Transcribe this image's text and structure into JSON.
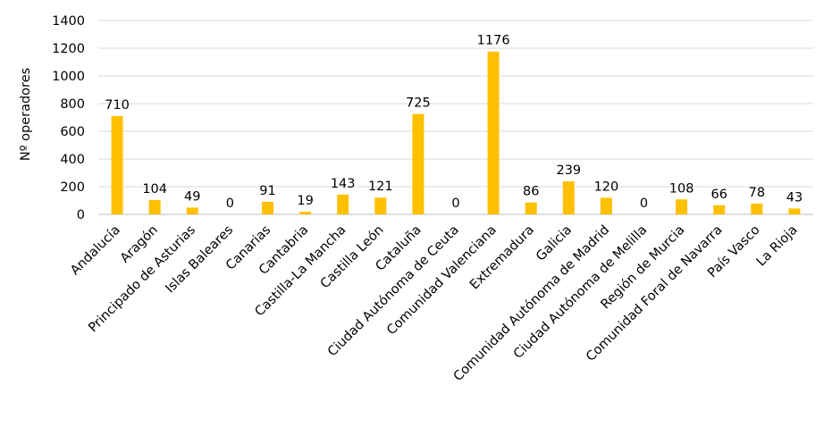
{
  "chart_data": {
    "type": "bar",
    "ylabel": "Nº operadores",
    "ylim": [
      0,
      1400
    ],
    "yticks": [
      0,
      200,
      400,
      600,
      800,
      1000,
      1200,
      1400
    ],
    "grid": true,
    "legend": "none",
    "bar_color": "#FFC000",
    "categories": [
      "Andalucía",
      "Aragón",
      "Principado de Asturias",
      "Islas Baleares",
      "Canarias",
      "Cantabria",
      "Castilla-La Mancha",
      "Castilla León",
      "Cataluña",
      "Ciudad Autónoma de Ceuta",
      "Comunidad Valenciana",
      "Extremadura",
      "Galicia",
      "Comunidad Autónoma de Madrid",
      "Ciudad Autónoma de Melilla",
      "Región de Murcia",
      "Comunidad Foral de Navarra",
      "País Vasco",
      "La Rioja"
    ],
    "values": [
      710,
      104,
      49,
      0,
      91,
      19,
      143,
      121,
      725,
      0,
      1176,
      86,
      239,
      120,
      0,
      108,
      66,
      78,
      43
    ]
  }
}
